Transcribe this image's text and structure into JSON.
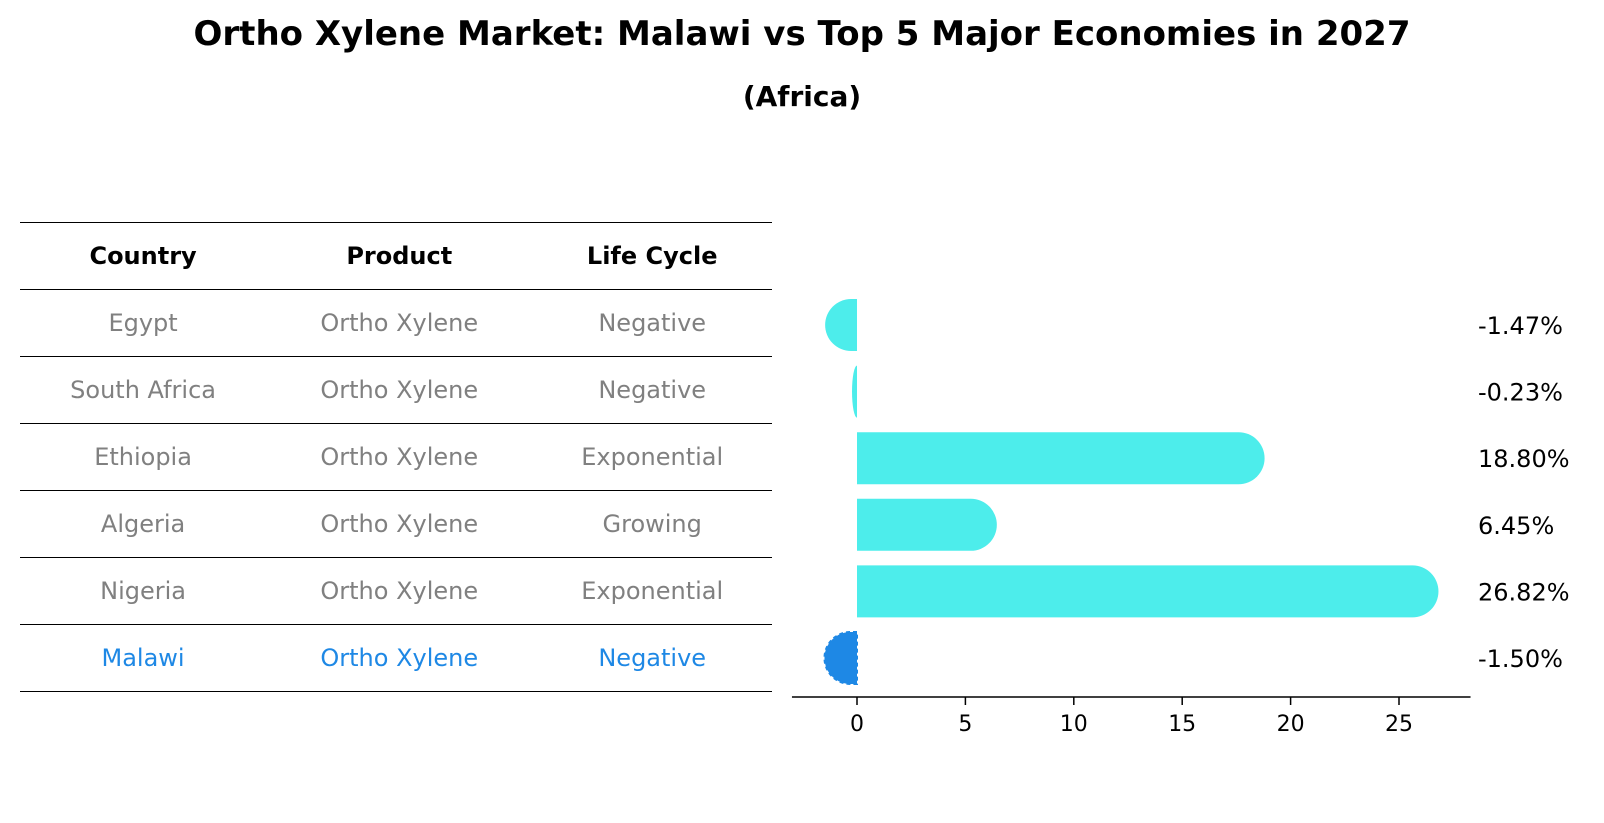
{
  "title": "Ortho Xylene Market: Malawi vs Top 5 Major Economies in 2027",
  "subtitle": "(Africa)",
  "table": {
    "headers": [
      "Country",
      "Product",
      "Life Cycle"
    ],
    "rows": [
      {
        "country": "Egypt",
        "product": "Ortho Xylene",
        "life_cycle": "Negative"
      },
      {
        "country": "South Africa",
        "product": "Ortho Xylene",
        "life_cycle": "Negative"
      },
      {
        "country": "Ethiopia",
        "product": "Ortho Xylene",
        "life_cycle": "Exponential"
      },
      {
        "country": "Algeria",
        "product": "Ortho Xylene",
        "life_cycle": "Growing"
      },
      {
        "country": "Nigeria",
        "product": "Ortho Xylene",
        "life_cycle": "Exponential"
      },
      {
        "country": "Malawi",
        "product": "Ortho Xylene",
        "life_cycle": "Negative"
      }
    ]
  },
  "colors": {
    "bar": "#4DEDEB",
    "highlight": "#1E88E5",
    "row_text": "#808080"
  },
  "chart_data": {
    "type": "bar",
    "orientation": "horizontal",
    "categories": [
      "Egypt",
      "South Africa",
      "Ethiopia",
      "Algeria",
      "Nigeria",
      "Malawi"
    ],
    "values": [
      -1.47,
      -0.23,
      18.8,
      6.45,
      26.82,
      -1.5
    ],
    "value_labels": [
      "-1.47%",
      "-0.23%",
      "18.80%",
      "6.45%",
      "26.82%",
      "-1.50%"
    ],
    "highlight_category": "Malawi",
    "xticks": [
      0,
      5,
      10,
      15,
      20,
      25
    ],
    "xlim": [
      -3,
      28.3
    ],
    "grid": false
  }
}
